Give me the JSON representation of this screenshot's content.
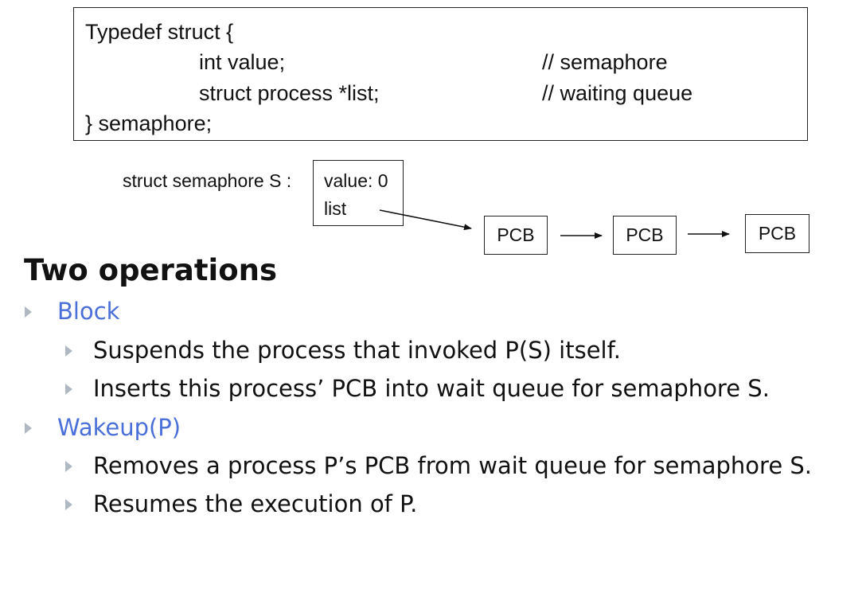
{
  "code": {
    "line1": "Typedef struct {",
    "line2_code": "int value;",
    "line2_comment": "// semaphore",
    "line3_code": "struct process *list;",
    "line3_comment": "// waiting queue",
    "line4": "} semaphore;"
  },
  "diagram": {
    "struct_label": "struct semaphore S :",
    "field_value": "value: 0",
    "field_list": "list",
    "pcb_labels": [
      "PCB",
      "PCB",
      "PCB"
    ]
  },
  "slide": {
    "heading": "Two operations",
    "block_label": "Block",
    "block_items": [
      "Suspends the process that invoked P(S) itself.",
      "Inserts this process’ PCB into wait queue for semaphore S."
    ],
    "wakeup_label": "Wakeup(P)",
    "wakeup_items": [
      "Removes a process P’s PCB from wait queue for semaphore S.",
      "Resumes the execution of P."
    ]
  },
  "colors": {
    "accent_blue": "#4a6fd8",
    "bullet_gray": "#b0b8c4"
  }
}
